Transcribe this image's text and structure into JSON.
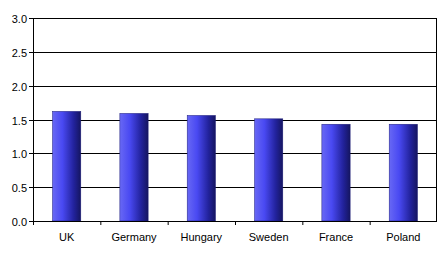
{
  "chart_data": {
    "type": "bar",
    "categories": [
      "UK",
      "Germany",
      "Hungary",
      "Sweden",
      "France",
      "Poland"
    ],
    "values": [
      1.62,
      1.59,
      1.56,
      1.51,
      1.43,
      1.43
    ],
    "color": "#3535f0",
    "ylim": [
      0,
      3
    ],
    "yticks": [
      {
        "value": 0,
        "label": "0.0"
      },
      0.5,
      {
        "value": 1,
        "label": "1.0"
      },
      1.5,
      {
        "value": 2,
        "label": "2.0"
      },
      2.5,
      {
        "value": 3,
        "label": "3.0"
      }
    ],
    "grid": true
  }
}
